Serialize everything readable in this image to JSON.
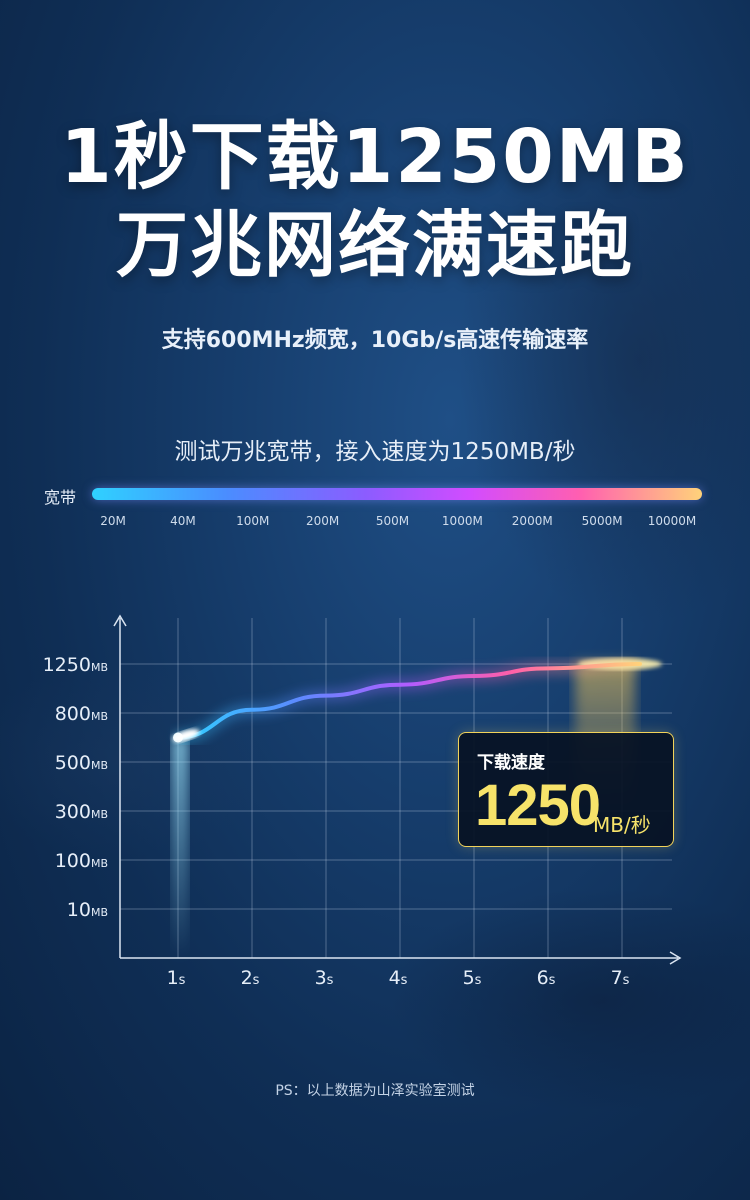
{
  "headline": {
    "line1": "1秒下载1250MB",
    "line2": "万兆网络满速跑"
  },
  "subtitle": "支持600MHz频宽，10Gb/s高速传输速率",
  "caption": "测试万兆宽带，接入速度为1250MB/秒",
  "bandwidth_scale": {
    "label": "宽带",
    "ticks": [
      "20M",
      "40M",
      "100M",
      "200M",
      "500M",
      "1000M",
      "2000M",
      "5000M",
      "10000M"
    ]
  },
  "colors": {
    "background": "#163d6c",
    "highlight": "#f7e36a",
    "curve_start": "#2fd1ff",
    "curve_mid": "#d24cff",
    "curve_end": "#ffd27a"
  },
  "speed_box": {
    "label": "下载速度",
    "value": "1250",
    "unit": "MB/秒"
  },
  "footnote": "PS：以上数据为山泽实验室测试",
  "chart_data": {
    "type": "line",
    "y_ticks": [
      {
        "value": "1250",
        "unit": "MB"
      },
      {
        "value": "800",
        "unit": "MB"
      },
      {
        "value": "500",
        "unit": "MB"
      },
      {
        "value": "300",
        "unit": "MB"
      },
      {
        "value": "100",
        "unit": "MB"
      },
      {
        "value": "10",
        "unit": "MB"
      }
    ],
    "x_ticks": [
      {
        "value": "1",
        "unit": "s"
      },
      {
        "value": "2",
        "unit": "s"
      },
      {
        "value": "3",
        "unit": "s"
      },
      {
        "value": "4",
        "unit": "s"
      },
      {
        "value": "5",
        "unit": "s"
      },
      {
        "value": "6",
        "unit": "s"
      },
      {
        "value": "7",
        "unit": "s"
      }
    ],
    "x": [
      1,
      2,
      3,
      4,
      5,
      6,
      7
    ],
    "series": [
      {
        "values": [
          650,
          830,
          960,
          1060,
          1140,
          1210,
          1250
        ]
      }
    ],
    "grid": true
  }
}
